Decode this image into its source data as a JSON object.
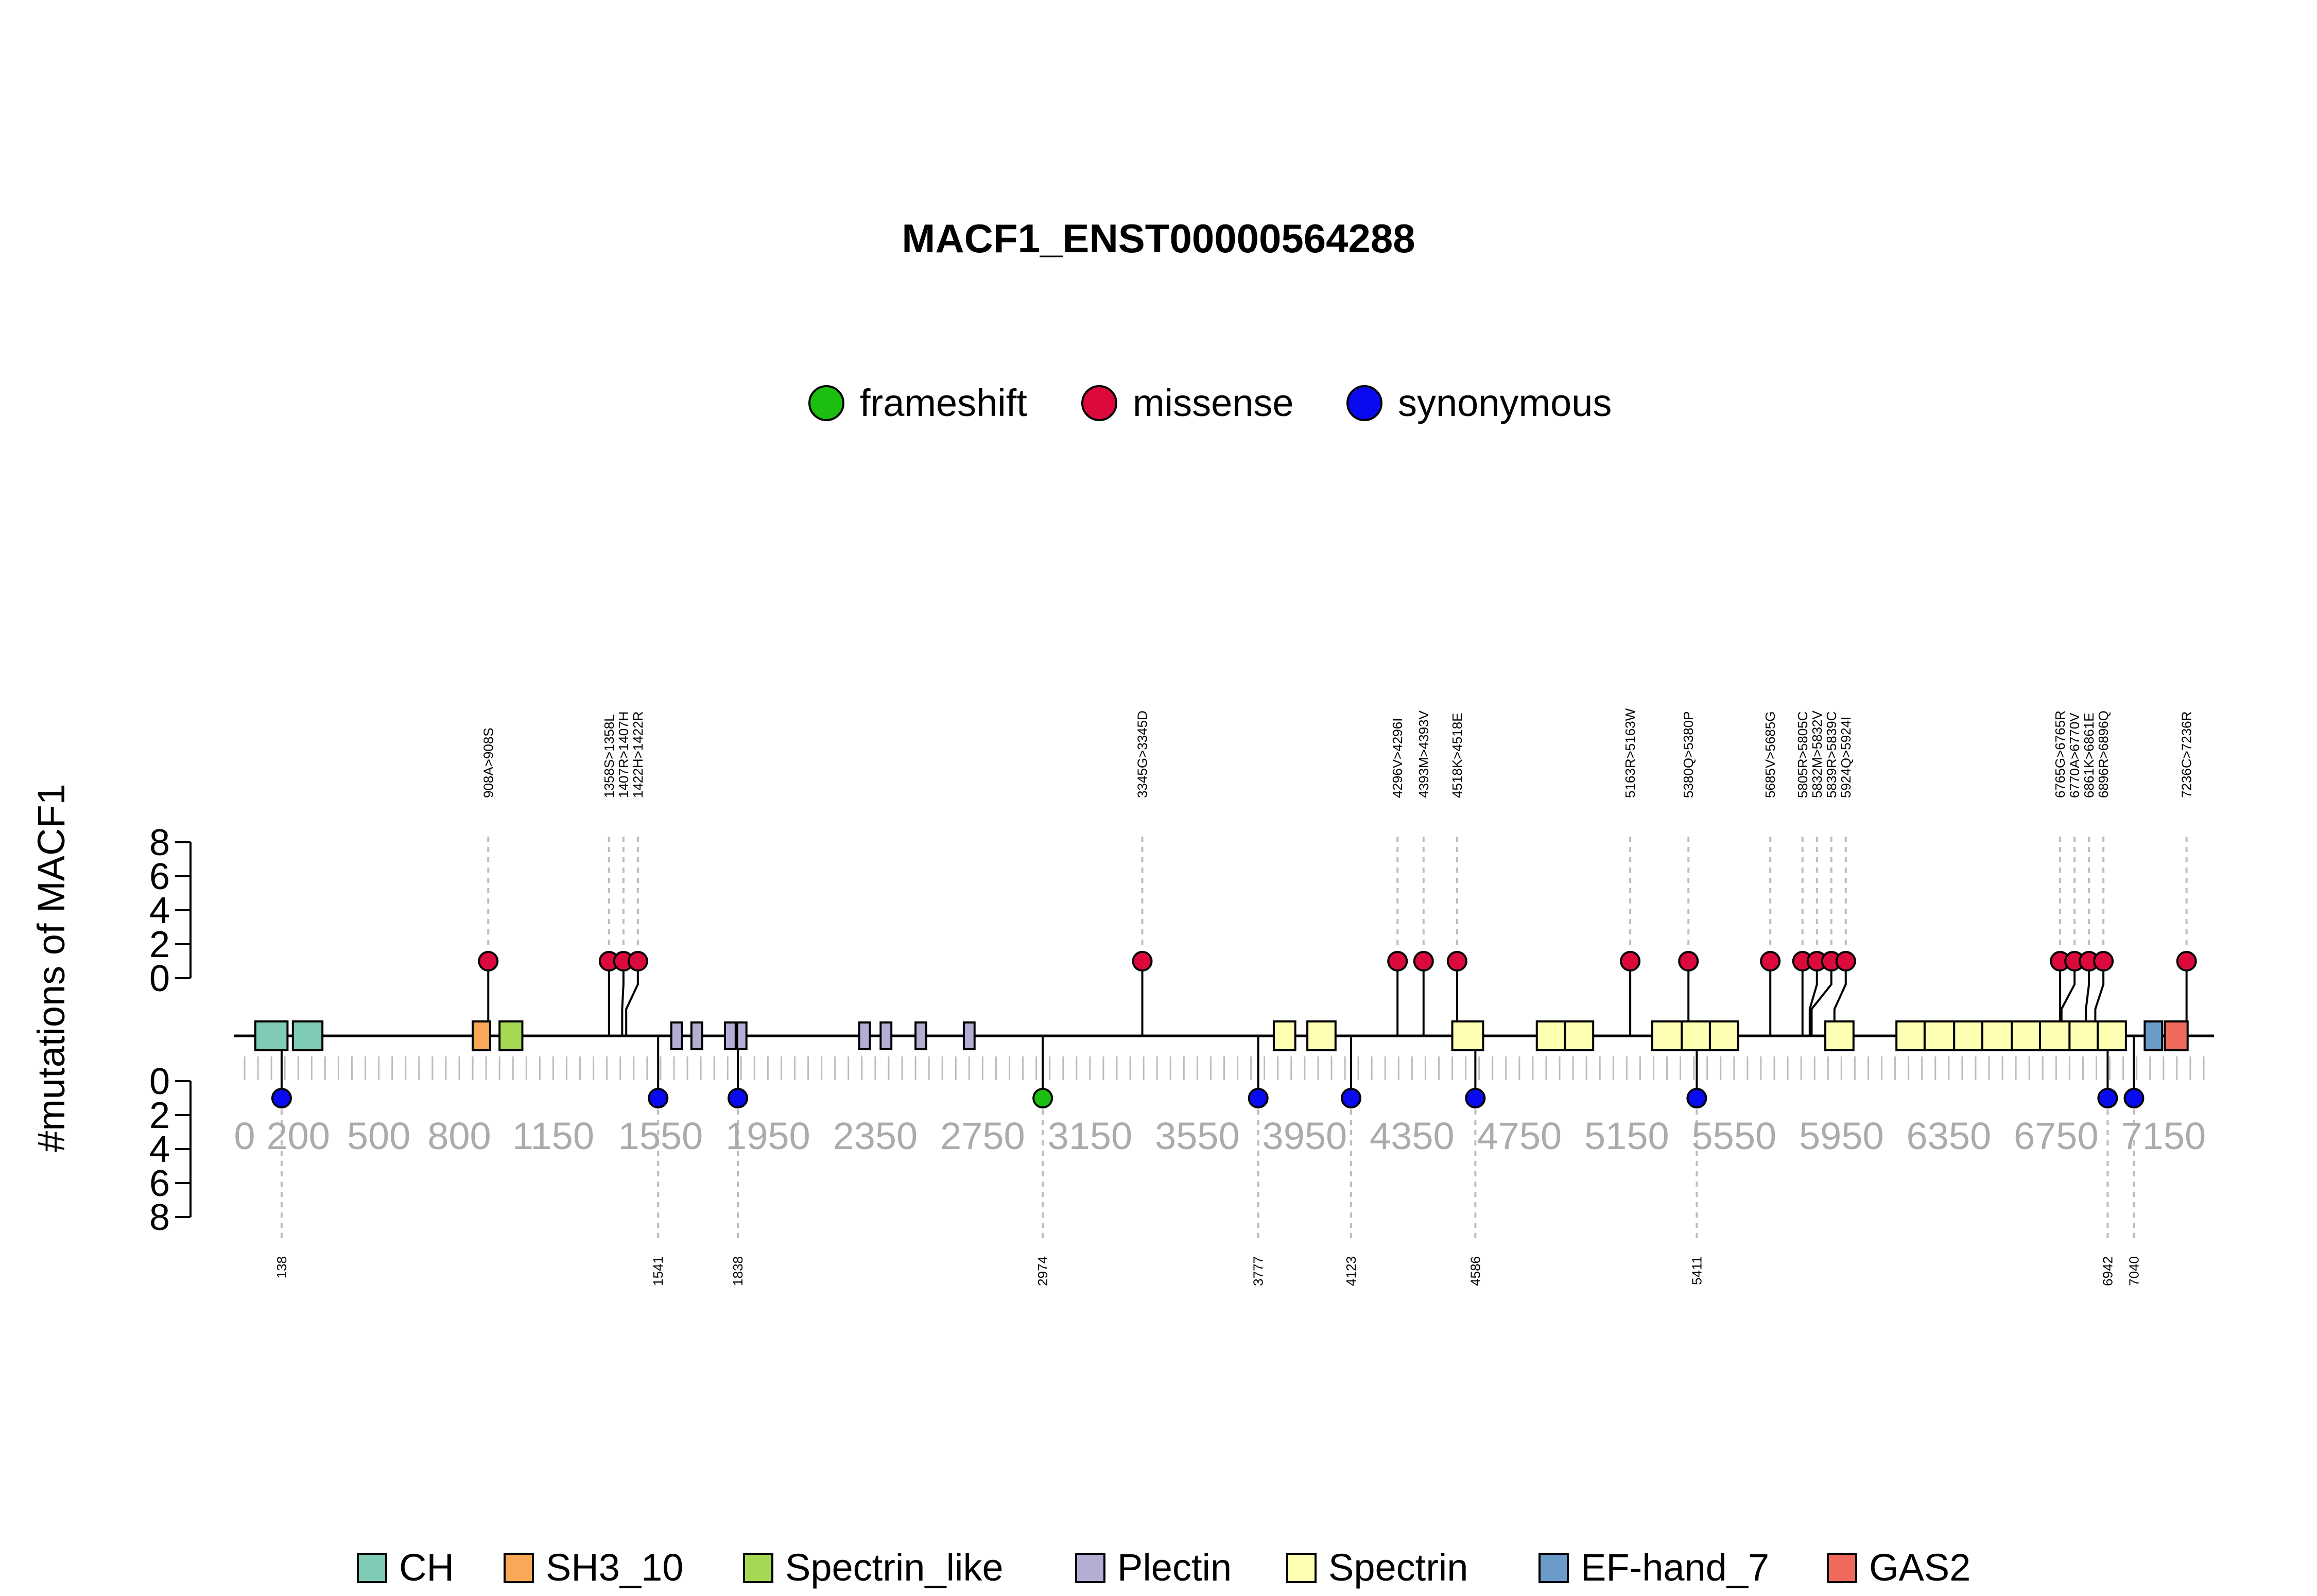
{
  "chart_data": {
    "type": "lollipop",
    "title": "MACF1_ENST00000564288",
    "ylabel": "#mutations of MACF1",
    "protein_length": 7300,
    "ylim": [
      0,
      8
    ],
    "y_ticks": [
      "0",
      "2",
      "4",
      "6",
      "8"
    ],
    "x_tick_labels": [
      "0",
      "200",
      "500",
      "800",
      "1150",
      "1550",
      "1950",
      "2350",
      "2750",
      "3150",
      "3550",
      "3950",
      "4350",
      "4750",
      "5150",
      "5550",
      "5950",
      "6350",
      "6750",
      "7150"
    ],
    "mutation_legend": [
      {
        "name": "frameshift",
        "color": "#1cbf0f"
      },
      {
        "name": "missense",
        "color": "#dc0a3c"
      },
      {
        "name": "synonymous",
        "color": "#0a0af0"
      }
    ],
    "domain_legend": [
      {
        "name": "CH",
        "color": "#7fcbb5"
      },
      {
        "name": "SH3_10",
        "color": "#f9a857"
      },
      {
        "name": "Spectrin_like",
        "color": "#a6d854"
      },
      {
        "name": "Plectin",
        "color": "#b2aed4"
      },
      {
        "name": "Spectrin",
        "color": "#ffffb3"
      },
      {
        "name": "EF-hand_7",
        "color": "#6a9ac8"
      },
      {
        "name": "GAS2",
        "color": "#ef6a5a"
      }
    ],
    "domains": [
      {
        "type": "CH",
        "start": 40,
        "end": 160
      },
      {
        "type": "CH",
        "start": 180,
        "end": 290
      },
      {
        "type": "SH3_10",
        "start": 850,
        "end": 915
      },
      {
        "type": "Spectrin_like",
        "start": 950,
        "end": 1035
      },
      {
        "type": "Plectin",
        "start": 1590,
        "end": 1630
      },
      {
        "type": "Plectin",
        "start": 1665,
        "end": 1705
      },
      {
        "type": "Plectin",
        "start": 1790,
        "end": 1830
      },
      {
        "type": "Plectin",
        "start": 1835,
        "end": 1870
      },
      {
        "type": "Plectin",
        "start": 2290,
        "end": 2330
      },
      {
        "type": "Plectin",
        "start": 2370,
        "end": 2410
      },
      {
        "type": "Plectin",
        "start": 2500,
        "end": 2540
      },
      {
        "type": "Plectin",
        "start": 2680,
        "end": 2720
      },
      {
        "type": "Spectrin",
        "start": 3835,
        "end": 3915
      },
      {
        "type": "Spectrin",
        "start": 3960,
        "end": 4065
      },
      {
        "type": "Spectrin",
        "start": 4500,
        "end": 4615
      },
      {
        "type": "Spectrin",
        "start": 4815,
        "end": 4920
      },
      {
        "type": "Spectrin",
        "start": 4920,
        "end": 5025
      },
      {
        "type": "Spectrin",
        "start": 5245,
        "end": 5355
      },
      {
        "type": "Spectrin",
        "start": 5355,
        "end": 5460
      },
      {
        "type": "Spectrin",
        "start": 5460,
        "end": 5565
      },
      {
        "type": "Spectrin",
        "start": 5890,
        "end": 5995
      },
      {
        "type": "Spectrin",
        "start": 6155,
        "end": 6260
      },
      {
        "type": "Spectrin",
        "start": 6260,
        "end": 6370
      },
      {
        "type": "Spectrin",
        "start": 6370,
        "end": 6475
      },
      {
        "type": "Spectrin",
        "start": 6475,
        "end": 6585
      },
      {
        "type": "Spectrin",
        "start": 6585,
        "end": 6690
      },
      {
        "type": "Spectrin",
        "start": 6690,
        "end": 6800
      },
      {
        "type": "Spectrin",
        "start": 6800,
        "end": 6905
      },
      {
        "type": "Spectrin",
        "start": 6905,
        "end": 7010
      },
      {
        "type": "EF-hand_7",
        "start": 7080,
        "end": 7145
      },
      {
        "type": "GAS2",
        "start": 7155,
        "end": 7240
      }
    ],
    "upper_mutations": [
      {
        "pos": 908,
        "count": 1,
        "type": "missense",
        "label": "908A>908S"
      },
      {
        "pos": 1358,
        "count": 1,
        "type": "missense",
        "label": "1358S>1358L"
      },
      {
        "pos": 1407,
        "count": 1,
        "type": "missense",
        "label": "1407R>1407H"
      },
      {
        "pos": 1422,
        "count": 1,
        "type": "missense",
        "label": "1422H>1422R"
      },
      {
        "pos": 3345,
        "count": 1,
        "type": "missense",
        "label": "3345G>3345D"
      },
      {
        "pos": 4296,
        "count": 1,
        "type": "missense",
        "label": "4296V>4296I"
      },
      {
        "pos": 4393,
        "count": 1,
        "type": "missense",
        "label": "4393M>4393V"
      },
      {
        "pos": 4518,
        "count": 1,
        "type": "missense",
        "label": "4518K>4518E"
      },
      {
        "pos": 5163,
        "count": 1,
        "type": "missense",
        "label": "5163R>5163W"
      },
      {
        "pos": 5380,
        "count": 1,
        "type": "missense",
        "label": "5380Q>5380P"
      },
      {
        "pos": 5685,
        "count": 1,
        "type": "missense",
        "label": "5685V>5685G"
      },
      {
        "pos": 5805,
        "count": 1,
        "type": "missense",
        "label": "5805R>5805C"
      },
      {
        "pos": 5832,
        "count": 1,
        "type": "missense",
        "label": "5832M>5832V"
      },
      {
        "pos": 5839,
        "count": 1,
        "type": "missense",
        "label": "5839R>5839C"
      },
      {
        "pos": 5924,
        "count": 1,
        "type": "missense",
        "label": "5924Q>5924I"
      },
      {
        "pos": 6765,
        "count": 1,
        "type": "missense",
        "label": "6765G>6765R"
      },
      {
        "pos": 6770,
        "count": 1,
        "type": "missense",
        "label": "6770A>6770V"
      },
      {
        "pos": 6861,
        "count": 1,
        "type": "missense",
        "label": "6861K>6861E"
      },
      {
        "pos": 6896,
        "count": 1,
        "type": "missense",
        "label": "6896R>6896Q"
      },
      {
        "pos": 7236,
        "count": 1,
        "type": "missense",
        "label": "7236C>7236R"
      }
    ],
    "lower_mutations": [
      {
        "pos": 138,
        "count": 1,
        "type": "synonymous",
        "label": "138"
      },
      {
        "pos": 1541,
        "count": 1,
        "type": "synonymous",
        "label": "1541"
      },
      {
        "pos": 1838,
        "count": 1,
        "type": "synonymous",
        "label": "1838"
      },
      {
        "pos": 2974,
        "count": 1,
        "type": "frameshift",
        "label": "2974"
      },
      {
        "pos": 3777,
        "count": 1,
        "type": "synonymous",
        "label": "3777"
      },
      {
        "pos": 4123,
        "count": 1,
        "type": "synonymous",
        "label": "4123"
      },
      {
        "pos": 4586,
        "count": 1,
        "type": "synonymous",
        "label": "4586"
      },
      {
        "pos": 5411,
        "count": 1,
        "type": "synonymous",
        "label": "5411"
      },
      {
        "pos": 6942,
        "count": 1,
        "type": "synonymous",
        "label": "6942"
      },
      {
        "pos": 7040,
        "count": 1,
        "type": "synonymous",
        "label": "7040"
      }
    ]
  }
}
